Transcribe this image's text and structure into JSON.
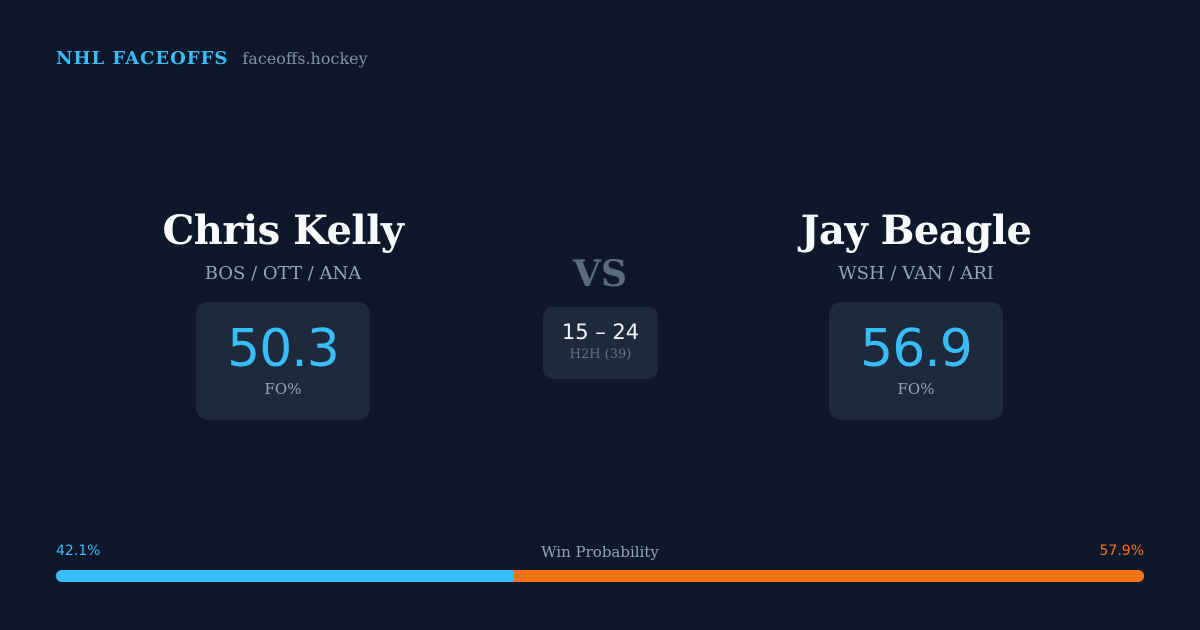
{
  "header": {
    "brand": "NHL FACEOFFS",
    "domain": "faceoffs.hockey"
  },
  "players": {
    "left": {
      "name": "Chris Kelly",
      "teams": "BOS / OTT / ANA",
      "fo_pct": "50.3",
      "fo_label": "FO%"
    },
    "right": {
      "name": "Jay Beagle",
      "teams": "WSH / VAN / ARI",
      "fo_pct": "56.9",
      "fo_label": "FO%"
    }
  },
  "vs_label": "VS",
  "h2h": {
    "score": "15 – 24",
    "label": "H2H (39)"
  },
  "win_probability": {
    "title": "Win Probability",
    "left_pct_text": "42.1%",
    "right_pct_text": "57.9%",
    "left_fraction": 0.421,
    "right_fraction": 0.579,
    "left_color": "#38bdf8",
    "right_color": "#f97316"
  },
  "colors": {
    "background": "#0f172a",
    "card": "#1e293b",
    "accent": "#38bdf8",
    "secondary_accent": "#f97316"
  }
}
